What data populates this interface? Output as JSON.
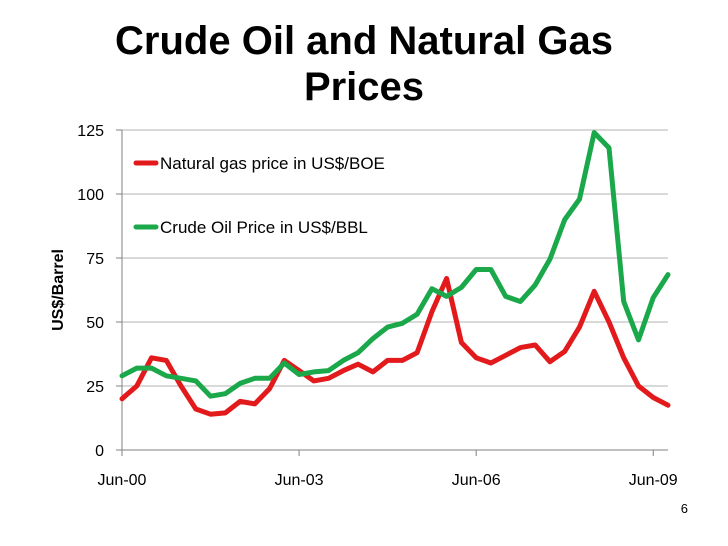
{
  "slide": {
    "title_line1": "Crude Oil and Natural Gas",
    "title_line2": "Prices",
    "page_number": "6"
  },
  "chart_data": {
    "type": "line",
    "ylabel": "US$/Barrel",
    "xlabel": "",
    "ylim": [
      0,
      125
    ],
    "yticks": [
      0,
      25,
      50,
      75,
      100,
      125
    ],
    "xlim": [
      2000.42,
      2009.67
    ],
    "xticks": [
      {
        "value": 2000.42,
        "label": "Jun-00"
      },
      {
        "value": 2003.42,
        "label": "Jun-03"
      },
      {
        "value": 2006.42,
        "label": "Jun-06"
      },
      {
        "value": 2009.42,
        "label": "Jun-09"
      }
    ],
    "grid": true,
    "legend_position": "top-left",
    "series": [
      {
        "name": "Natural gas price in US$/BOE",
        "color": "#e31a1c",
        "points": [
          [
            2000.42,
            20
          ],
          [
            2000.67,
            25
          ],
          [
            2000.92,
            36
          ],
          [
            2001.17,
            35
          ],
          [
            2001.42,
            25
          ],
          [
            2001.67,
            16
          ],
          [
            2001.92,
            14
          ],
          [
            2002.17,
            14.5
          ],
          [
            2002.42,
            19
          ],
          [
            2002.67,
            18
          ],
          [
            2002.92,
            24
          ],
          [
            2003.17,
            35
          ],
          [
            2003.42,
            31
          ],
          [
            2003.67,
            27
          ],
          [
            2003.92,
            28
          ],
          [
            2004.17,
            31
          ],
          [
            2004.42,
            33.5
          ],
          [
            2004.67,
            30.5
          ],
          [
            2004.92,
            35
          ],
          [
            2005.17,
            35
          ],
          [
            2005.42,
            38
          ],
          [
            2005.67,
            54
          ],
          [
            2005.92,
            67
          ],
          [
            2006.17,
            42
          ],
          [
            2006.42,
            36
          ],
          [
            2006.67,
            34
          ],
          [
            2006.92,
            37
          ],
          [
            2007.17,
            40
          ],
          [
            2007.42,
            41
          ],
          [
            2007.67,
            34.5
          ],
          [
            2007.92,
            38.5
          ],
          [
            2008.17,
            48
          ],
          [
            2008.42,
            62
          ],
          [
            2008.67,
            50
          ],
          [
            2008.92,
            36
          ],
          [
            2009.17,
            25
          ],
          [
            2009.42,
            20.5
          ],
          [
            2009.67,
            17.5
          ]
        ]
      },
      {
        "name": "Crude Oil Price in US$/BBL",
        "color": "#1aa84b",
        "points": [
          [
            2000.42,
            29
          ],
          [
            2000.67,
            32
          ],
          [
            2000.92,
            32
          ],
          [
            2001.17,
            29
          ],
          [
            2001.42,
            28
          ],
          [
            2001.67,
            27
          ],
          [
            2001.92,
            21
          ],
          [
            2002.17,
            22
          ],
          [
            2002.42,
            26
          ],
          [
            2002.67,
            28
          ],
          [
            2002.92,
            28
          ],
          [
            2003.17,
            34
          ],
          [
            2003.42,
            29.5
          ],
          [
            2003.67,
            30.5
          ],
          [
            2003.92,
            31
          ],
          [
            2004.17,
            35
          ],
          [
            2004.42,
            38
          ],
          [
            2004.67,
            43.5
          ],
          [
            2004.92,
            48
          ],
          [
            2005.17,
            49.5
          ],
          [
            2005.42,
            53
          ],
          [
            2005.67,
            63
          ],
          [
            2005.92,
            60
          ],
          [
            2006.17,
            63.5
          ],
          [
            2006.42,
            70.5
          ],
          [
            2006.67,
            70.5
          ],
          [
            2006.92,
            60
          ],
          [
            2007.17,
            58
          ],
          [
            2007.42,
            64.5
          ],
          [
            2007.67,
            74.5
          ],
          [
            2007.92,
            90
          ],
          [
            2008.17,
            98
          ],
          [
            2008.42,
            124
          ],
          [
            2008.67,
            118
          ],
          [
            2008.92,
            58
          ],
          [
            2009.17,
            43
          ],
          [
            2009.42,
            59.5
          ],
          [
            2009.67,
            68.5
          ]
        ]
      }
    ]
  }
}
